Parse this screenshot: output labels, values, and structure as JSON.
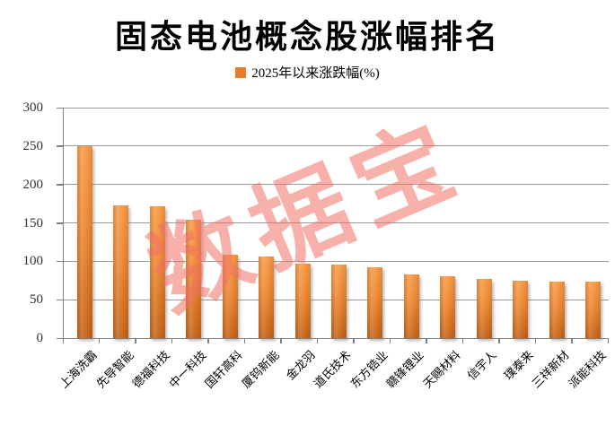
{
  "title": "固态电池概念股涨幅排名",
  "legend": {
    "label": "2025年以来涨跌幅(%)",
    "marker_color": "#E87C28"
  },
  "watermark": {
    "text": "数据宝",
    "color": "rgba(240,112,100,0.55)"
  },
  "colors": {
    "bar_top": "#F89B47",
    "bar_bottom": "#C7651B",
    "gridline": "#999999",
    "axis": "#808080",
    "axis_label": "#333333"
  },
  "chart_data": {
    "type": "bar",
    "title": "固态电池概念股涨幅排名",
    "series_name": "2025年以来涨跌幅(%)",
    "categories": [
      "上海洗霸",
      "先导智能",
      "德福科技",
      "中一科技",
      "国轩高科",
      "厦钨新能",
      "金龙羽",
      "道氏技术",
      "东方锆业",
      "赣锋锂业",
      "天赐材料",
      "信宇人",
      "璞泰来",
      "三祥新材",
      "派能科技"
    ],
    "values": [
      250,
      173,
      172,
      154,
      109,
      106,
      97,
      96,
      92,
      83,
      80,
      77,
      75,
      74,
      73
    ],
    "xlabel": "",
    "ylabel": "",
    "ylim": [
      0,
      300
    ],
    "yticks": [
      0,
      50,
      100,
      150,
      200,
      250,
      300
    ],
    "grid": true,
    "legend_position": "top"
  }
}
